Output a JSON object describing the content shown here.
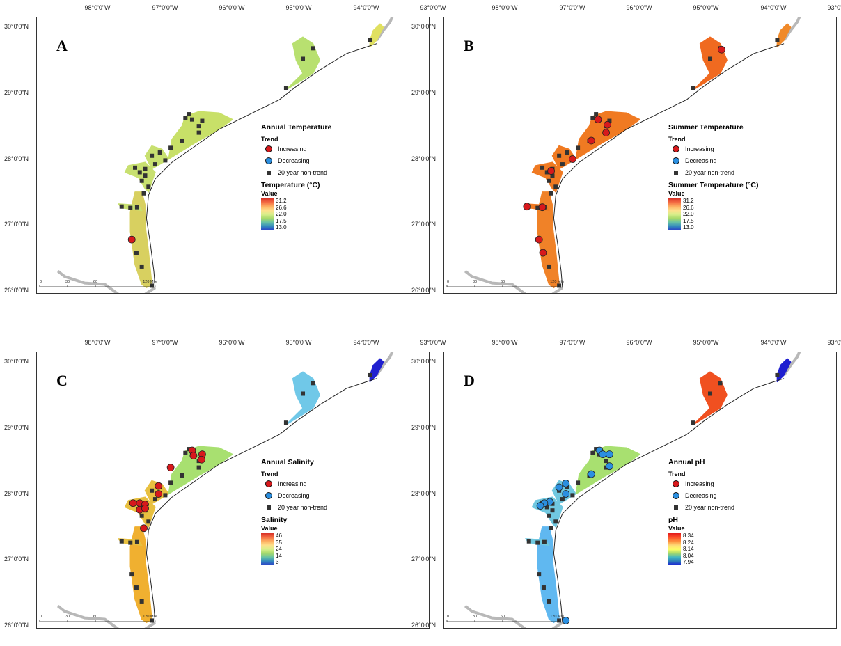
{
  "axes": {
    "longitude_labels": [
      "98°0'0\"W",
      "97°0'0\"W",
      "96°0'0\"W",
      "95°0'0\"W",
      "94°0'0\"W",
      "93°0'0\"W"
    ],
    "latitude_labels": [
      "30°0'0\"N",
      "29°0'0\"N",
      "28°0'0\"N",
      "27°0'0\"N",
      "26°0'0\"N"
    ]
  },
  "scale": {
    "ticks": [
      "0",
      "30",
      "60",
      "120 Miles"
    ]
  },
  "trend_legend": {
    "trend_label": "Trend",
    "increasing": "Increasing",
    "decreasing": "Decreasing",
    "non_trend": "20 year non-trend",
    "value_label": "Value",
    "increasing_color": "#d7191c",
    "decreasing_color": "#2b8fe0",
    "non_trend_color": "#333333"
  },
  "panels": [
    {
      "letter": "A",
      "legend_title": "Annual Temperature",
      "variable_label": "Temperature (°C)",
      "ramp_values": [
        "31.2",
        "26.6",
        "22.0",
        "17.5",
        "13.0"
      ],
      "bay_colors": {
        "sabine": "#e0e060",
        "galveston": "#b8e070",
        "matagorda": "#c8e068",
        "corpus": "#c8e070",
        "laguna": "#d8d060"
      },
      "increasing_sites": [
        [
          97.5,
          26.78
        ]
      ],
      "decreasing_sites": []
    },
    {
      "letter": "B",
      "legend_title": "Summer Temperature",
      "variable_label": "Summer Temperature (°C)",
      "ramp_values": [
        "31.2",
        "26.6",
        "22.0",
        "17.5",
        "13.0"
      ],
      "bay_colors": {
        "sabine": "#f08a2a",
        "galveston": "#f06a20",
        "matagorda": "#f07a22",
        "corpus": "#f07a22",
        "laguna": "#f08228"
      },
      "increasing_sites": [
        [
          94.78,
          29.66
        ],
        [
          96.62,
          28.6
        ],
        [
          96.48,
          28.52
        ],
        [
          96.5,
          28.4
        ],
        [
          96.72,
          28.28
        ],
        [
          97.0,
          28.0
        ],
        [
          97.32,
          27.82
        ],
        [
          97.68,
          27.28
        ],
        [
          97.45,
          27.27
        ],
        [
          97.5,
          26.78
        ],
        [
          97.44,
          26.58
        ]
      ],
      "decreasing_sites": []
    },
    {
      "letter": "C",
      "legend_title": "Annual Salinity",
      "variable_label": "Salinity",
      "ramp_values": [
        "46",
        "35",
        "24",
        "14",
        "3"
      ],
      "bay_colors": {
        "sabine": "#2020d0",
        "galveston": "#70c8e8",
        "matagorda": "#a8e070",
        "corpus": "#e8c040",
        "laguna": "#f0b030"
      },
      "increasing_sites": [
        [
          96.6,
          28.66
        ],
        [
          96.58,
          28.58
        ],
        [
          96.45,
          28.6
        ],
        [
          96.46,
          28.52
        ],
        [
          96.92,
          28.4
        ],
        [
          97.1,
          28.12
        ],
        [
          97.1,
          28.0
        ],
        [
          97.48,
          27.86
        ],
        [
          97.38,
          27.86
        ],
        [
          97.3,
          27.84
        ],
        [
          97.38,
          27.76
        ],
        [
          97.3,
          27.78
        ],
        [
          97.32,
          27.48
        ]
      ],
      "decreasing_sites": []
    },
    {
      "letter": "D",
      "legend_title": "Annual pH",
      "variable_label": "pH",
      "ramp_values": [
        "8.34",
        "8.24",
        "8.14",
        "8.04",
        "7.94"
      ],
      "bay_colors": {
        "sabine": "#2020d0",
        "galveston": "#f05020",
        "matagorda": "#a8e070",
        "corpus": "#70c8e0",
        "laguna": "#60b8f0"
      },
      "increasing_sites": [],
      "decreasing_sites": [
        [
          96.6,
          28.66
        ],
        [
          96.55,
          28.6
        ],
        [
          96.45,
          28.6
        ],
        [
          96.45,
          28.42
        ],
        [
          96.72,
          28.3
        ],
        [
          97.1,
          28.16
        ],
        [
          97.2,
          28.1
        ],
        [
          97.1,
          28.0
        ],
        [
          97.34,
          27.88
        ],
        [
          97.42,
          27.86
        ],
        [
          97.48,
          27.82
        ],
        [
          97.1,
          26.08
        ]
      ]
    }
  ]
}
